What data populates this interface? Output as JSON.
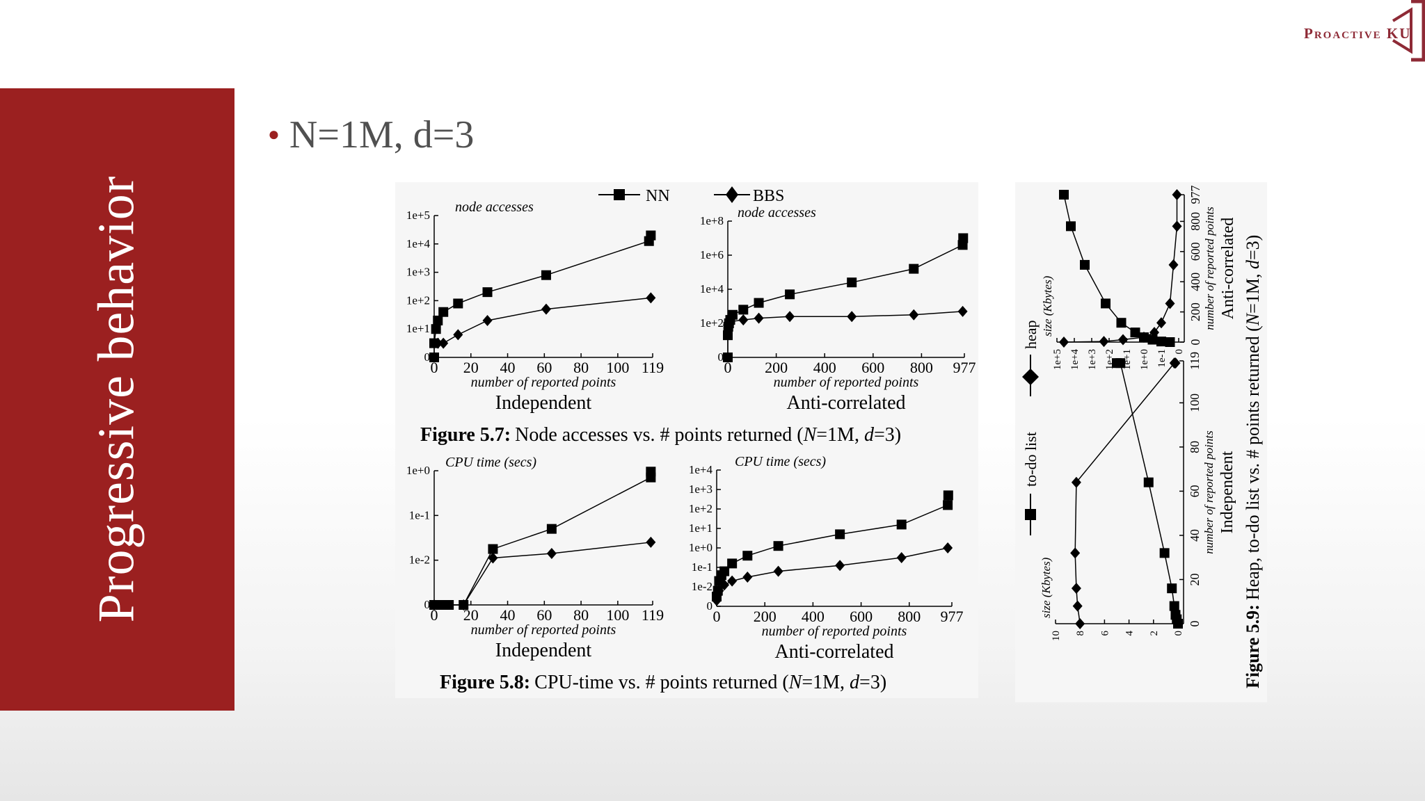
{
  "slide": {
    "side_title": "Progressive behavior",
    "bullet": "N=1M, d=3",
    "logo_text": "Proactive KU",
    "accent_color": "#9b2020"
  },
  "legend": {
    "nn": "NN",
    "bbs": "BBS"
  },
  "captions": {
    "fig57_label": "Figure 5.7:",
    "fig57_text": "Node accesses vs. # points returned (",
    "fig58_label": "Figure 5.8:",
    "fig58_text": "CPU-time vs. # points returned (",
    "fig59_label": "Figure 5.9:",
    "fig59_text": "Heap, to-do list vs. # points returned (",
    "n_symbol": "N",
    "n_value": "=1M, ",
    "d_symbol": "d",
    "d_value": "=3)"
  },
  "fig59_legend": {
    "heap": "heap",
    "todo": "to-do list"
  },
  "chart_data": [
    {
      "id": "fig5_7_independent",
      "type": "line",
      "subtitle": "Independent",
      "ylabel": "node accesses",
      "xlabel": "number of reported points",
      "x_ticks": [
        "0",
        "20",
        "40",
        "60",
        "80",
        "100",
        "119"
      ],
      "x_tick_values": [
        0,
        20,
        40,
        60,
        80,
        100,
        119
      ],
      "y_ticks": [
        "0",
        "1e+1",
        "1e+2",
        "1e+3",
        "1e+4",
        "1e+5"
      ],
      "y_tick_values": [
        0,
        1,
        2,
        3,
        4,
        5
      ],
      "xlim": [
        0,
        119
      ],
      "ylim": [
        0,
        5
      ],
      "y_scale": "log",
      "series": [
        {
          "name": "NN",
          "marker": "square",
          "points": [
            [
              0,
              0
            ],
            [
              0,
              0.5
            ],
            [
              1,
              1
            ],
            [
              2,
              1.3
            ],
            [
              5,
              1.6
            ],
            [
              13,
              1.9
            ],
            [
              29,
              2.3
            ],
            [
              61,
              2.9
            ],
            [
              117,
              4.1
            ],
            [
              118,
              4.3
            ]
          ]
        },
        {
          "name": "BBS",
          "marker": "diamond",
          "points": [
            [
              0,
              0.5
            ],
            [
              2,
              0.5
            ],
            [
              5,
              0.5
            ],
            [
              13,
              0.8
            ],
            [
              29,
              1.3
            ],
            [
              61,
              1.7
            ],
            [
              118,
              2.1
            ]
          ]
        }
      ]
    },
    {
      "id": "fig5_7_anticorrelated",
      "type": "line",
      "subtitle": "Anti-correlated",
      "ylabel": "node accesses",
      "xlabel": "number of reported points",
      "x_ticks": [
        "0",
        "200",
        "400",
        "600",
        "800",
        "977"
      ],
      "x_tick_values": [
        0,
        200,
        400,
        600,
        800,
        977
      ],
      "y_ticks": [
        "0",
        "1e+2",
        "1e+4",
        "1e+6",
        "1e+8"
      ],
      "y_tick_values": [
        0,
        2,
        4,
        6,
        8
      ],
      "xlim": [
        0,
        977
      ],
      "ylim": [
        0,
        8
      ],
      "y_scale": "log",
      "series": [
        {
          "name": "NN",
          "marker": "square",
          "points": [
            [
              0,
              0
            ],
            [
              0,
              1.3
            ],
            [
              2,
              1.8
            ],
            [
              5,
              2.0
            ],
            [
              10,
              2.2
            ],
            [
              20,
              2.5
            ],
            [
              64,
              2.8
            ],
            [
              128,
              3.2
            ],
            [
              256,
              3.7
            ],
            [
              512,
              4.4
            ],
            [
              768,
              5.2
            ],
            [
              970,
              6.6
            ],
            [
              972,
              7.0
            ]
          ]
        },
        {
          "name": "BBS",
          "marker": "diamond",
          "points": [
            [
              0,
              1.9
            ],
            [
              5,
              2.0
            ],
            [
              10,
              2.1
            ],
            [
              64,
              2.2
            ],
            [
              128,
              2.3
            ],
            [
              256,
              2.4
            ],
            [
              512,
              2.4
            ],
            [
              768,
              2.5
            ],
            [
              970,
              2.7
            ]
          ]
        }
      ]
    },
    {
      "id": "fig5_8_independent",
      "type": "line",
      "subtitle": "Independent",
      "ylabel": "CPU time (secs)",
      "xlabel": "number of reported points",
      "x_ticks": [
        "0",
        "20",
        "40",
        "60",
        "80",
        "100",
        "119"
      ],
      "x_tick_values": [
        0,
        20,
        40,
        60,
        80,
        100,
        119
      ],
      "y_ticks": [
        "0",
        "1e-2",
        "1e-1",
        "1e+0"
      ],
      "y_tick_values": [
        0,
        1,
        2,
        3
      ],
      "xlim": [
        0,
        119
      ],
      "ylim": [
        0,
        3
      ],
      "y_scale": "log",
      "series": [
        {
          "name": "NN",
          "marker": "square",
          "points": [
            [
              0,
              0
            ],
            [
              2,
              0
            ],
            [
              4,
              0
            ],
            [
              6,
              0
            ],
            [
              8,
              0
            ],
            [
              16,
              0
            ],
            [
              32,
              1.25
            ],
            [
              64,
              1.7
            ],
            [
              118,
              2.85
            ],
            [
              118,
              2.98
            ]
          ]
        },
        {
          "name": "BBS",
          "marker": "diamond",
          "points": [
            [
              0,
              0
            ],
            [
              16,
              0
            ],
            [
              32,
              1.05
            ],
            [
              64,
              1.15
            ],
            [
              118,
              1.4
            ]
          ]
        }
      ]
    },
    {
      "id": "fig5_8_anticorrelated",
      "type": "line",
      "subtitle": "Anti-correlated",
      "ylabel": "CPU time (secs)",
      "xlabel": "number of reported points",
      "x_ticks": [
        "0",
        "200",
        "400",
        "600",
        "800",
        "977"
      ],
      "x_tick_values": [
        0,
        200,
        400,
        600,
        800,
        977
      ],
      "y_ticks": [
        "0",
        "1e-2",
        "1e-1",
        "1e+0",
        "1e+1",
        "1e+2",
        "1e+3",
        "1e+4"
      ],
      "y_tick_values": [
        0,
        1,
        2,
        3,
        4,
        5,
        6,
        7
      ],
      "xlim": [
        0,
        977
      ],
      "ylim": [
        0,
        7
      ],
      "y_scale": "log",
      "series": [
        {
          "name": "NN",
          "marker": "square",
          "points": [
            [
              0,
              0.5
            ],
            [
              5,
              0.8
            ],
            [
              10,
              1.3
            ],
            [
              20,
              1.6
            ],
            [
              32,
              1.8
            ],
            [
              64,
              2.2
            ],
            [
              128,
              2.6
            ],
            [
              256,
              3.1
            ],
            [
              512,
              3.7
            ],
            [
              768,
              4.2
            ],
            [
              960,
              5.2
            ],
            [
              962,
              5.7
            ]
          ]
        },
        {
          "name": "BBS",
          "marker": "diamond",
          "points": [
            [
              0,
              0.3
            ],
            [
              5,
              0.6
            ],
            [
              10,
              0.8
            ],
            [
              32,
              1.1
            ],
            [
              64,
              1.3
            ],
            [
              128,
              1.5
            ],
            [
              256,
              1.8
            ],
            [
              512,
              2.1
            ],
            [
              768,
              2.5
            ],
            [
              960,
              3.0
            ]
          ]
        }
      ]
    },
    {
      "id": "fig5_9_anticorrelated",
      "type": "line",
      "subtitle": "Anti-correlated",
      "ylabel": "size (Kbytes)",
      "xlabel": "number of reported points",
      "x_ticks": [
        "0",
        "200",
        "400",
        "600",
        "800",
        "977"
      ],
      "x_tick_values": [
        0,
        200,
        400,
        600,
        800,
        977
      ],
      "y_ticks": [
        "0",
        "1e-1",
        "1e+0",
        "1e+1",
        "1e+2",
        "1e+3",
        "1e+4",
        "1e+5"
      ],
      "y_tick_values": [
        0,
        1,
        2,
        3,
        4,
        5,
        6,
        7
      ],
      "xlim": [
        0,
        977
      ],
      "ylim": [
        0,
        7
      ],
      "y_scale": "log",
      "orientation": "rotated",
      "series": [
        {
          "name": "to-do list",
          "marker": "square",
          "points": [
            [
              0,
              0.5
            ],
            [
              4,
              1.0
            ],
            [
              16,
              1.5
            ],
            [
              32,
              2
            ],
            [
              64,
              2.5
            ],
            [
              128,
              3.3
            ],
            [
              256,
              4.2
            ],
            [
              512,
              5.4
            ],
            [
              768,
              6.2
            ],
            [
              977,
              6.6
            ]
          ]
        },
        {
          "name": "heap",
          "marker": "diamond",
          "points": [
            [
              0,
              6.6
            ],
            [
              4,
              4.3
            ],
            [
              16,
              3.2
            ],
            [
              32,
              2.0
            ],
            [
              64,
              1.4
            ],
            [
              128,
              1.0
            ],
            [
              256,
              0.5
            ],
            [
              512,
              0.3
            ],
            [
              768,
              0.1
            ],
            [
              977,
              0.1
            ]
          ]
        }
      ]
    },
    {
      "id": "fig5_9_independent",
      "type": "line",
      "subtitle": "Independent",
      "ylabel": "size (Kbytes)",
      "xlabel": "number of reported points",
      "x_ticks": [
        "0",
        "20",
        "40",
        "60",
        "80",
        "100",
        "119"
      ],
      "x_tick_values": [
        0,
        20,
        40,
        60,
        80,
        100,
        119
      ],
      "y_ticks": [
        "0",
        "2",
        "4",
        "6",
        "8",
        "10"
      ],
      "y_tick_values": [
        0,
        2,
        4,
        6,
        8,
        10
      ],
      "xlim": [
        0,
        119
      ],
      "ylim": [
        0,
        10
      ],
      "y_scale": "linear",
      "orientation": "rotated",
      "series": [
        {
          "name": "to-do list",
          "marker": "square",
          "points": [
            [
              0,
              0
            ],
            [
              2,
              0.1
            ],
            [
              4,
              0.2
            ],
            [
              8,
              0.3
            ],
            [
              16,
              0.5
            ],
            [
              32,
              1.1
            ],
            [
              64,
              2.4
            ],
            [
              118,
              4.7
            ],
            [
              118,
              5.0
            ]
          ]
        },
        {
          "name": "heap",
          "marker": "diamond",
          "points": [
            [
              0,
              8.0
            ],
            [
              8,
              8.2
            ],
            [
              16,
              8.3
            ],
            [
              32,
              8.4
            ],
            [
              64,
              8.3
            ],
            [
              118,
              0.3
            ],
            [
              118,
              0.2
            ]
          ]
        }
      ]
    }
  ]
}
